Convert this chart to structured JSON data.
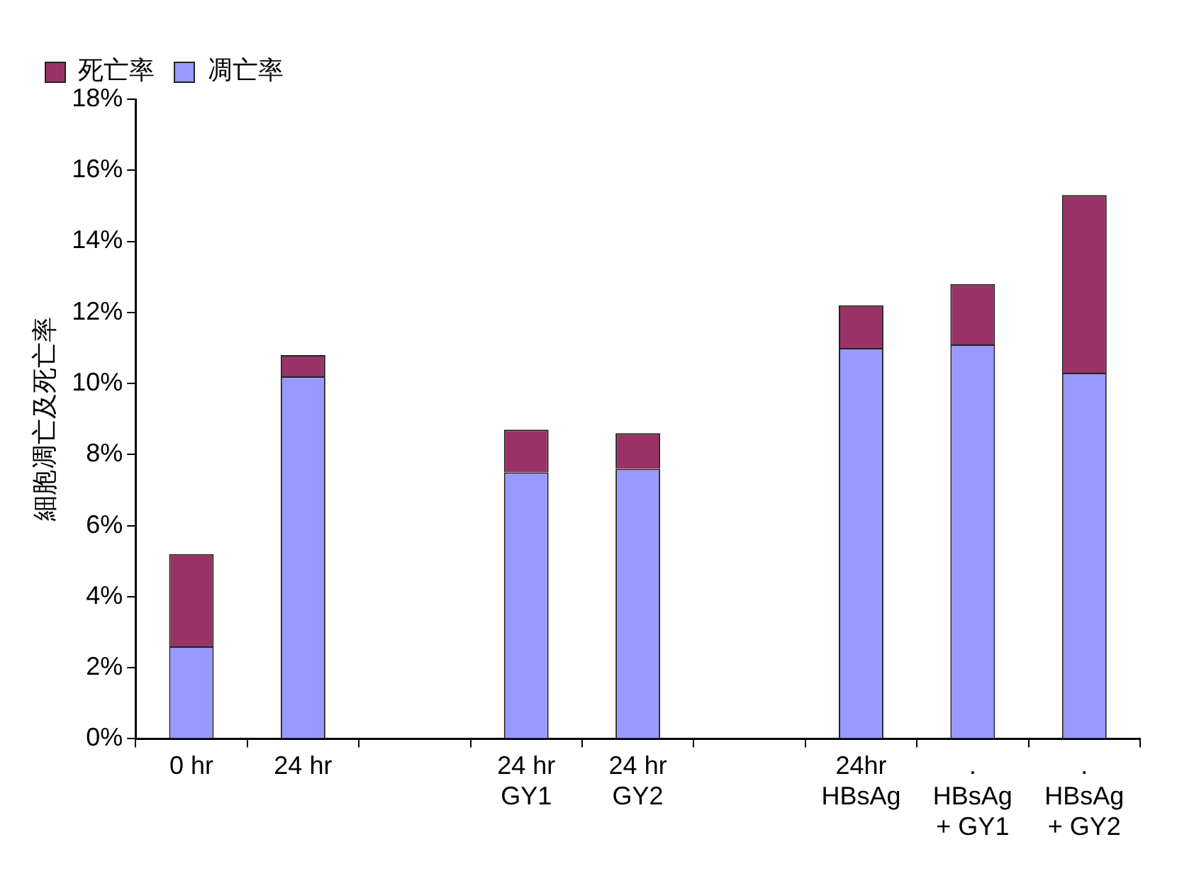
{
  "chart_data": {
    "type": "bar",
    "stacked": true,
    "ylabel": "細胞凋亡及死亡率",
    "categories": [
      "0 hr",
      "24 hr",
      null,
      "24 hr\nGY1",
      "24 hr\nGY2",
      null,
      "24hr\nHBsAg",
      ".\nHBsAg\n+ GY1",
      ".\nHBsAg\n+ GY2"
    ],
    "series": [
      {
        "name": "凋亡率",
        "color": "#9999ff",
        "values": [
          2.6,
          10.2,
          null,
          7.5,
          7.6,
          null,
          11.0,
          11.1,
          10.3
        ]
      },
      {
        "name": "死亡率",
        "color": "#993366",
        "values": [
          2.6,
          0.6,
          null,
          1.2,
          1.0,
          null,
          1.2,
          1.7,
          5.0
        ]
      }
    ],
    "ylim": [
      0,
      18
    ],
    "yticks": [
      {
        "value": 0,
        "label": "0%"
      },
      {
        "value": 2,
        "label": "2%"
      },
      {
        "value": 4,
        "label": "4%"
      },
      {
        "value": 6,
        "label": "6%"
      },
      {
        "value": 8,
        "label": "8%"
      },
      {
        "value": 10,
        "label": "10%"
      },
      {
        "value": 12,
        "label": "12%"
      },
      {
        "value": 14,
        "label": "14%"
      },
      {
        "value": 16,
        "label": "16%"
      },
      {
        "value": 18,
        "label": "18%"
      }
    ],
    "grid": false,
    "legend": "top"
  }
}
